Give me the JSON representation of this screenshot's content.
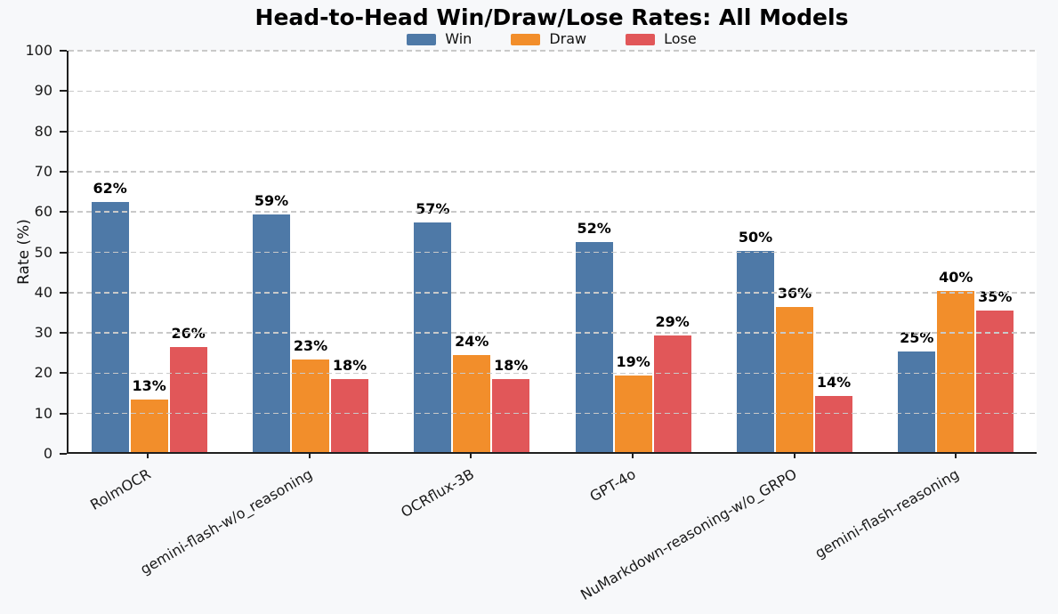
{
  "chart_data": {
    "type": "bar",
    "title": "Head-to-Head Win/Draw/Lose Rates: All Models",
    "ylabel": "Rate (%)",
    "xlabel": "",
    "ylim": [
      0,
      100
    ],
    "yticks": [
      0,
      10,
      20,
      30,
      40,
      50,
      60,
      70,
      80,
      90,
      100
    ],
    "grid": "horizontal-dashed",
    "legend_position": "top-center",
    "categories": [
      "RolmOCR",
      "gemini-flash-w/o_reasoning",
      "OCRflux-3B",
      "GPT-4o",
      "NuMarkdown-reasoning-w/o_GRPO",
      "gemini-flash-reasoning"
    ],
    "series": [
      {
        "name": "Win",
        "color": "#4E79A7",
        "values": [
          62,
          59,
          57,
          52,
          50,
          25
        ],
        "labels": [
          "62%",
          "59%",
          "57%",
          "52%",
          "50%",
          "25%"
        ]
      },
      {
        "name": "Draw",
        "color": "#F28E2B",
        "values": [
          13,
          23,
          24,
          19,
          36,
          40
        ],
        "labels": [
          "13%",
          "23%",
          "24%",
          "19%",
          "36%",
          "40%"
        ]
      },
      {
        "name": "Lose",
        "color": "#E15759",
        "values": [
          26,
          18,
          18,
          29,
          14,
          35
        ],
        "labels": [
          "26%",
          "18%",
          "18%",
          "29%",
          "14%",
          "35%"
        ]
      }
    ]
  },
  "colors": {
    "figure_bg": "#F7F8FA",
    "plot_bg": "#FFFFFF",
    "grid": "#C9C9C9",
    "spine": "#1F1F1F",
    "tick_text": "#1A1A1A",
    "label_text": "#000000"
  }
}
